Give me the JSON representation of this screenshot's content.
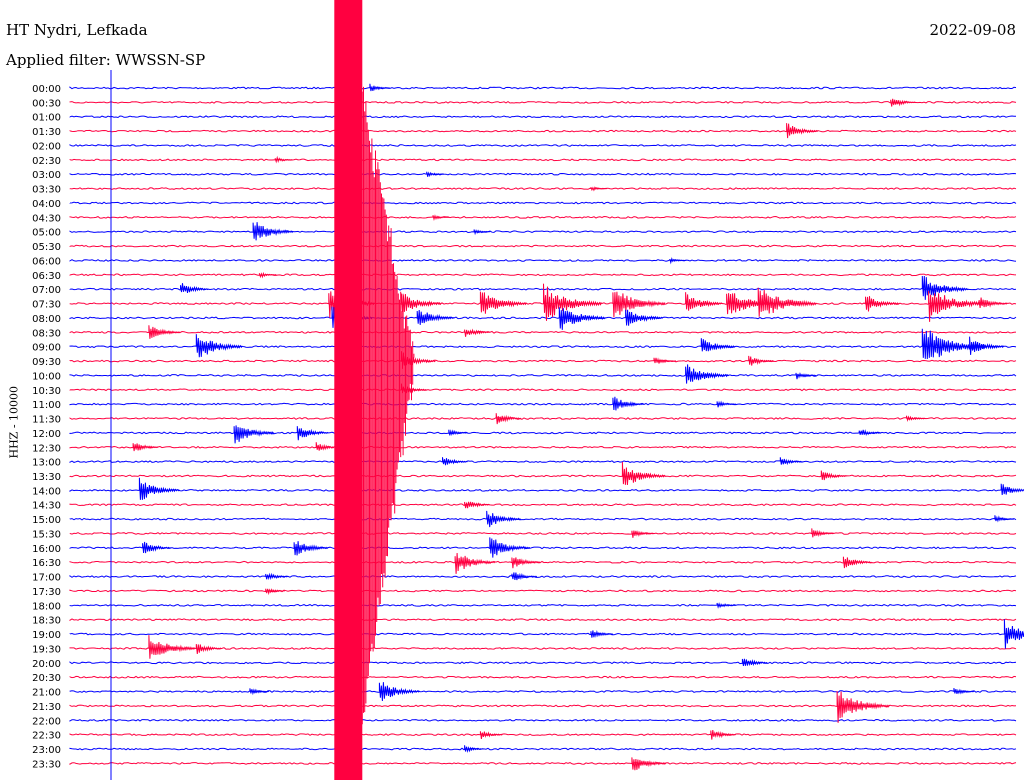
{
  "header": {
    "station": "HT Nydri, Lefkada",
    "filter_label": "Applied filter: WWSSN-SP",
    "date": "2022-09-08"
  },
  "chart_data": {
    "type": "line",
    "title": "HT Nydri, Lefkada",
    "subtitle": "Applied filter: WWSSN-SP",
    "date": "2022-09-08",
    "ylabel": "HHZ - 10000",
    "xlabel": "",
    "x_unit": "minutes",
    "xlim": [
      0,
      30
    ],
    "grid": false,
    "colors": [
      "#0000ff",
      "#ff0040"
    ],
    "rows": [
      "00:00",
      "00:30",
      "01:00",
      "01:30",
      "02:00",
      "02:30",
      "03:00",
      "03:30",
      "04:00",
      "04:30",
      "05:00",
      "05:30",
      "06:00",
      "06:30",
      "07:00",
      "07:30",
      "08:00",
      "08:30",
      "09:00",
      "09:30",
      "10:00",
      "10:30",
      "11:00",
      "11:30",
      "12:00",
      "12:30",
      "13:00",
      "13:30",
      "14:00",
      "14:30",
      "15:00",
      "15:30",
      "16:00",
      "16:30",
      "17:00",
      "17:30",
      "18:00",
      "18:30",
      "19:00",
      "19:30",
      "20:00",
      "20:30",
      "21:00",
      "21:30",
      "22:00",
      "22:30",
      "23:00",
      "23:30"
    ],
    "events": [
      {
        "row": "00:00",
        "minute": 9.5,
        "amp": 0.35
      },
      {
        "row": "00:30",
        "minute": 26.0,
        "amp": 0.5
      },
      {
        "row": "01:30",
        "minute": 22.7,
        "amp": 0.7
      },
      {
        "row": "02:30",
        "minute": 6.5,
        "amp": 0.25
      },
      {
        "row": "03:00",
        "minute": 11.3,
        "amp": 0.25
      },
      {
        "row": "03:30",
        "minute": 16.5,
        "amp": 0.2
      },
      {
        "row": "04:30",
        "minute": 11.5,
        "amp": 0.2
      },
      {
        "row": "05:00",
        "minute": 5.8,
        "amp": 1.0
      },
      {
        "row": "05:00",
        "minute": 12.8,
        "amp": 0.2
      },
      {
        "row": "06:00",
        "minute": 19.0,
        "amp": 0.2
      },
      {
        "row": "06:30",
        "minute": 6.0,
        "amp": 0.25
      },
      {
        "row": "07:00",
        "minute": 3.5,
        "amp": 0.6
      },
      {
        "row": "07:00",
        "minute": 27.0,
        "amp": 1.2
      },
      {
        "row": "07:30",
        "minute": 8.2,
        "amp": 1.2
      },
      {
        "row": "07:30",
        "minute": 10.5,
        "amp": 1.0
      },
      {
        "row": "07:30",
        "minute": 13.0,
        "amp": 1.2
      },
      {
        "row": "07:30",
        "minute": 15.0,
        "amp": 1.6
      },
      {
        "row": "07:30",
        "minute": 17.2,
        "amp": 1.4
      },
      {
        "row": "07:30",
        "minute": 19.5,
        "amp": 0.9
      },
      {
        "row": "07:30",
        "minute": 20.8,
        "amp": 1.3
      },
      {
        "row": "07:30",
        "minute": 21.8,
        "amp": 1.6
      },
      {
        "row": "07:30",
        "minute": 25.2,
        "amp": 0.8
      },
      {
        "row": "07:30",
        "minute": 27.2,
        "amp": 1.5
      },
      {
        "row": "07:30",
        "minute": 28.8,
        "amp": 0.6
      },
      {
        "row": "08:00",
        "minute": 8.3,
        "amp": 1.0
      },
      {
        "row": "08:00",
        "minute": 11.0,
        "amp": 0.9
      },
      {
        "row": "08:00",
        "minute": 15.5,
        "amp": 1.2
      },
      {
        "row": "08:00",
        "minute": 17.6,
        "amp": 0.9
      },
      {
        "row": "08:30",
        "minute": 2.5,
        "amp": 0.7
      },
      {
        "row": "08:30",
        "minute": 12.5,
        "amp": 0.5
      },
      {
        "row": "09:00",
        "minute": 4.0,
        "amp": 1.2
      },
      {
        "row": "09:00",
        "minute": 20.0,
        "amp": 0.8
      },
      {
        "row": "09:00",
        "minute": 27.0,
        "amp": 1.8
      },
      {
        "row": "09:00",
        "minute": 28.5,
        "amp": 0.8
      },
      {
        "row": "09:30",
        "minute": 10.5,
        "amp": 0.8
      },
      {
        "row": "09:30",
        "minute": 18.5,
        "amp": 0.4
      },
      {
        "row": "09:30",
        "minute": 21.5,
        "amp": 0.5
      },
      {
        "row": "10:00",
        "minute": 19.5,
        "amp": 1.1
      },
      {
        "row": "10:00",
        "minute": 23.0,
        "amp": 0.35
      },
      {
        "row": "10:30",
        "minute": 10.5,
        "amp": 0.5
      },
      {
        "row": "11:00",
        "minute": 17.2,
        "amp": 0.7
      },
      {
        "row": "11:00",
        "minute": 20.5,
        "amp": 0.3
      },
      {
        "row": "11:30",
        "minute": 13.5,
        "amp": 0.5
      },
      {
        "row": "11:30",
        "minute": 26.5,
        "amp": 0.3
      },
      {
        "row": "12:00",
        "minute": 5.2,
        "amp": 1.0
      },
      {
        "row": "12:00",
        "minute": 7.2,
        "amp": 0.7
      },
      {
        "row": "12:00",
        "minute": 12.0,
        "amp": 0.3
      },
      {
        "row": "12:00",
        "minute": 25.0,
        "amp": 0.4
      },
      {
        "row": "12:30",
        "minute": 2.0,
        "amp": 0.5
      },
      {
        "row": "12:30",
        "minute": 7.8,
        "amp": 0.4
      },
      {
        "row": "13:00",
        "minute": 11.8,
        "amp": 0.5
      },
      {
        "row": "13:00",
        "minute": 22.5,
        "amp": 0.4
      },
      {
        "row": "13:30",
        "minute": 17.5,
        "amp": 1.1
      },
      {
        "row": "13:30",
        "minute": 23.8,
        "amp": 0.5
      },
      {
        "row": "14:00",
        "minute": 2.2,
        "amp": 1.0
      },
      {
        "row": "14:00",
        "minute": 29.5,
        "amp": 0.6
      },
      {
        "row": "14:30",
        "minute": 12.5,
        "amp": 0.5
      },
      {
        "row": "15:00",
        "minute": 13.2,
        "amp": 0.8
      },
      {
        "row": "15:00",
        "minute": 29.3,
        "amp": 0.3
      },
      {
        "row": "15:30",
        "minute": 17.8,
        "amp": 0.4
      },
      {
        "row": "15:30",
        "minute": 23.5,
        "amp": 0.4
      },
      {
        "row": "16:00",
        "minute": 2.3,
        "amp": 0.6
      },
      {
        "row": "16:00",
        "minute": 7.1,
        "amp": 0.8
      },
      {
        "row": "16:00",
        "minute": 13.3,
        "amp": 1.0
      },
      {
        "row": "16:30",
        "minute": 12.2,
        "amp": 1.0
      },
      {
        "row": "16:30",
        "minute": 14.0,
        "amp": 0.6
      },
      {
        "row": "16:30",
        "minute": 24.5,
        "amp": 0.6
      },
      {
        "row": "17:00",
        "minute": 6.2,
        "amp": 0.4
      },
      {
        "row": "17:00",
        "minute": 14.0,
        "amp": 0.5
      },
      {
        "row": "17:30",
        "minute": 6.2,
        "amp": 0.3
      },
      {
        "row": "18:00",
        "minute": 20.5,
        "amp": 0.3
      },
      {
        "row": "19:00",
        "minute": 16.5,
        "amp": 0.4
      },
      {
        "row": "19:00",
        "minute": 29.6,
        "amp": 1.2
      },
      {
        "row": "19:30",
        "minute": 2.5,
        "amp": 1.2
      },
      {
        "row": "19:30",
        "minute": 4.0,
        "amp": 0.5
      },
      {
        "row": "20:00",
        "minute": 21.3,
        "amp": 0.5
      },
      {
        "row": "21:00",
        "minute": 5.7,
        "amp": 0.3
      },
      {
        "row": "21:00",
        "minute": 9.8,
        "amp": 1.0
      },
      {
        "row": "21:00",
        "minute": 28.0,
        "amp": 0.35
      },
      {
        "row": "21:30",
        "minute": 24.3,
        "amp": 1.4
      },
      {
        "row": "22:30",
        "minute": 13.0,
        "amp": 0.4
      },
      {
        "row": "22:30",
        "minute": 20.3,
        "amp": 0.5
      },
      {
        "row": "23:00",
        "minute": 12.5,
        "amp": 0.3
      },
      {
        "row": "23:30",
        "minute": 17.8,
        "amp": 0.8
      }
    ],
    "major_quake": {
      "start_row": "00:00",
      "minute": 8.5,
      "peak_amp": 6
    }
  }
}
